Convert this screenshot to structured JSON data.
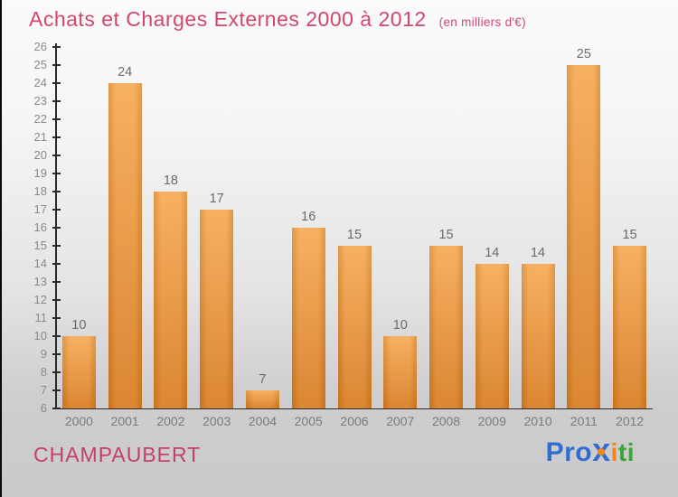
{
  "header": {
    "title": "Achats et Charges Externes 2000 à 2012",
    "subtitle": "(en milliers d'€)",
    "title_color": "#d4476d"
  },
  "chart_data": {
    "type": "bar",
    "title": "Achats et Charges Externes 2000 à 2012",
    "subtitle": "(en milliers d'€)",
    "categories": [
      "2000",
      "2001",
      "2002",
      "2003",
      "2004",
      "2005",
      "2006",
      "2007",
      "2008",
      "2009",
      "2010",
      "2011",
      "2012"
    ],
    "values": [
      10,
      24,
      18,
      17,
      7,
      16,
      15,
      10,
      15,
      14,
      14,
      25,
      15
    ],
    "xlabel": "",
    "ylabel": "",
    "ylim": [
      6,
      26
    ],
    "ytick_step": 1,
    "grid": false,
    "legend": "none",
    "bar_colors": {
      "top": "#f6aa55",
      "bottom": "#d87c22"
    },
    "value_label_color": "#6b6b6b",
    "axis_color": "#2b2b2b",
    "ytick_label_color": "#8a8a8a",
    "xtick_label_color": "#7a7a7a"
  },
  "footer": {
    "company": "CHAMPAUBERT",
    "company_color": "#c4406b",
    "logo": {
      "pro": "Pro",
      "x": "x",
      "i1": "i",
      "t": "t",
      "i2": "i",
      "colors": {
        "blue": "#2e6ed2",
        "orange": "#f0861a",
        "green": "#3aa33a"
      }
    }
  }
}
